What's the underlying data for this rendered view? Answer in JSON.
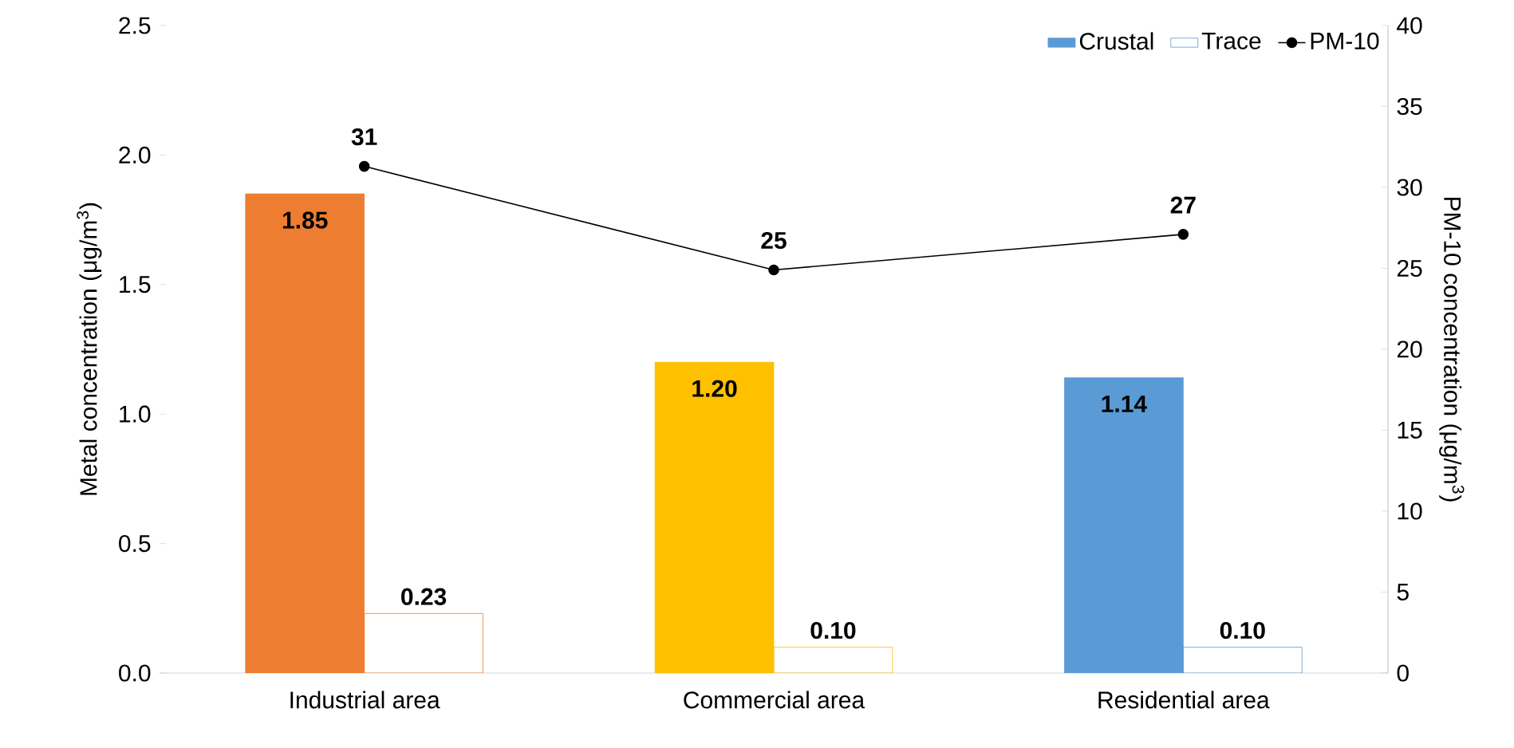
{
  "chart_data": {
    "type": "bar",
    "categories": [
      "Industrial area",
      "Commercial area",
      "Residential area"
    ],
    "ylabel": "Metal concentration (μg/m$^{3}$)",
    "y2label": "PM-10 concentration (μg/m$^{3}$)",
    "ylim": [
      0,
      2.5
    ],
    "yticks": [
      {
        "value": 0,
        "label": "0.0"
      },
      {
        "value": 0.5,
        "label": "0.5"
      },
      {
        "value": 1,
        "label": "1.0"
      },
      {
        "value": 1.5,
        "label": "1.5"
      },
      {
        "value": 2,
        "label": "2.0"
      },
      {
        "value": 2.5,
        "label": "2.5"
      }
    ],
    "y2lim": [
      0,
      40
    ],
    "y2ticks": [
      0,
      5,
      10,
      15,
      20,
      25,
      30,
      35,
      40
    ],
    "legend": "top right",
    "grid": false,
    "series": [
      {
        "name": "Crustal",
        "color": "#5b9bd5",
        "colors": [
          "#ed7d31",
          "#ffc000",
          "#5b9bd5"
        ],
        "values": [
          1.85,
          1.2,
          1.14
        ],
        "value_labels": [
          "1.85",
          "1.20",
          "1.14"
        ]
      },
      {
        "name": "Trace",
        "color": "#5b9bd5",
        "colors": [
          "#ed7d31",
          "#ffc000",
          "#5b9bd5"
        ],
        "values": [
          0.23,
          0.1,
          0.1
        ],
        "value_labels": [
          "0.23",
          "0.10",
          "0.10"
        ]
      },
      {
        "name": "PM-10",
        "type": "line",
        "axis": "y2",
        "color": "#000000",
        "marker": "circle",
        "values": [
          31.3,
          24.9,
          27.1
        ],
        "value_labels": [
          "31",
          "25",
          "27"
        ]
      }
    ]
  }
}
